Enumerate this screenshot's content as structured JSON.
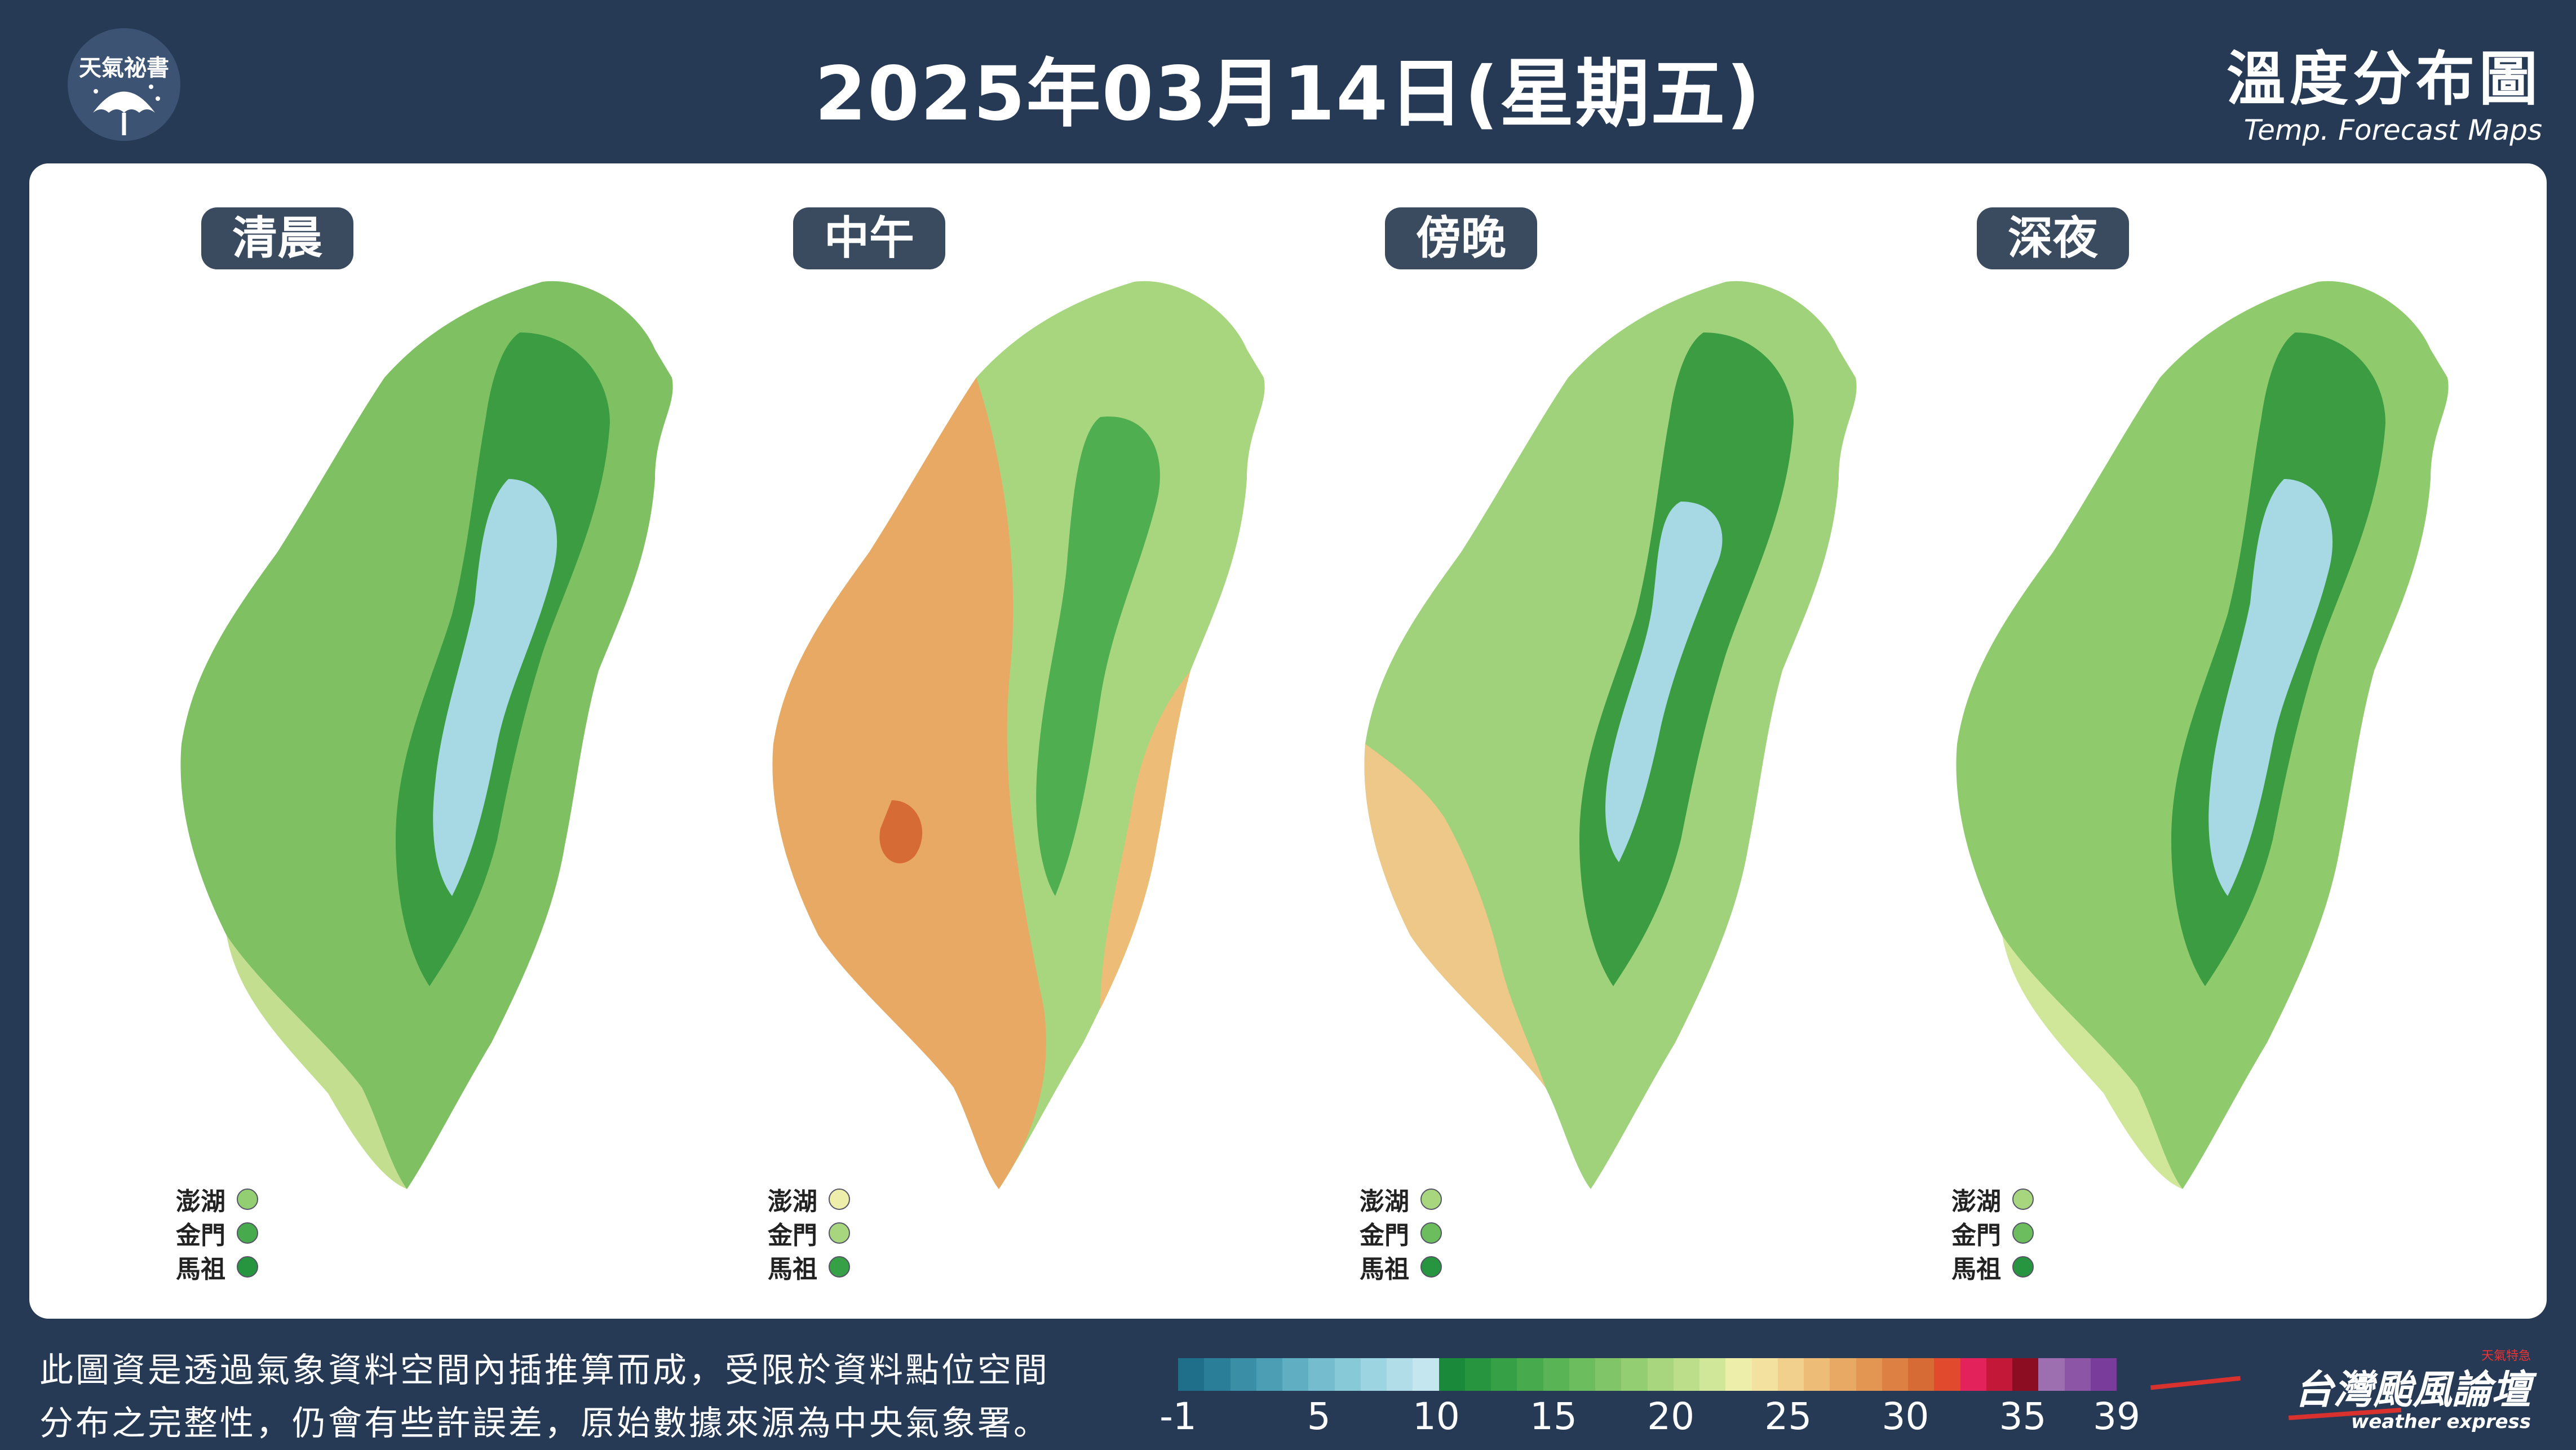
{
  "header": {
    "logo_text": "天氣祕書",
    "date_title": "2025年03月14日(星期五)",
    "title_zh": "溫度分布圖",
    "title_en": "Temp. Forecast Maps"
  },
  "maps": [
    {
      "label": "清晨",
      "islands": [
        {
          "name": "澎湖",
          "temp_bin": "20-21"
        },
        {
          "name": "金門",
          "temp_bin": "16-17"
        },
        {
          "name": "馬祖",
          "temp_bin": "12-13"
        }
      ]
    },
    {
      "label": "中午",
      "islands": [
        {
          "name": "澎湖",
          "temp_bin": "24-25"
        },
        {
          "name": "金門",
          "temp_bin": "21-22"
        },
        {
          "name": "馬祖",
          "temp_bin": "14-15"
        }
      ]
    },
    {
      "label": "傍晚",
      "islands": [
        {
          "name": "澎湖",
          "temp_bin": "21-22"
        },
        {
          "name": "金門",
          "temp_bin": "18-19"
        },
        {
          "name": "馬祖",
          "temp_bin": "13-14"
        }
      ]
    },
    {
      "label": "深夜",
      "islands": [
        {
          "name": "澎湖",
          "temp_bin": "21-22"
        },
        {
          "name": "金門",
          "temp_bin": "18-19"
        },
        {
          "name": "馬祖",
          "temp_bin": "13-14"
        }
      ]
    }
  ],
  "footer": {
    "note_line1": "此圖資是透過氣象資料空間內插推算而成，受限於資料點位空間",
    "note_line2": "分布之完整性，仍會有些許誤差，原始數據來源為中央氣象署。",
    "brand_zh": "台灣颱風論壇",
    "brand_en": "weather express",
    "brand_tag": "天氣特急"
  },
  "legend": {
    "ticks": [
      "-1",
      "5",
      "10",
      "15",
      "20",
      "25",
      "30",
      "35",
      "39"
    ],
    "tick_values": [
      -1,
      5,
      10,
      15,
      20,
      25,
      30,
      35,
      39
    ],
    "min": -1,
    "max": 39,
    "colors": [
      "#1f6f8b",
      "#2a7e98",
      "#3a8ea6",
      "#4c9eb4",
      "#5faec2",
      "#74bcce",
      "#88c9d8",
      "#9dd4e1",
      "#b1dde8",
      "#c4e6ee",
      "#1a8a3a",
      "#27953f",
      "#36a046",
      "#47aa4d",
      "#59b455",
      "#6cbd5e",
      "#80c668",
      "#94ce73",
      "#a8d67f",
      "#bcde8b",
      "#d0e698",
      "#eeeeab",
      "#f3e1a0",
      "#f1d08d",
      "#edbd78",
      "#e8a964",
      "#e39552",
      "#dd8043",
      "#d76b35",
      "#e24a2e",
      "#e3225c",
      "#c41838",
      "#8c0d22",
      "#9e6fb0",
      "#8d55a6",
      "#7a3c9b"
    ]
  }
}
